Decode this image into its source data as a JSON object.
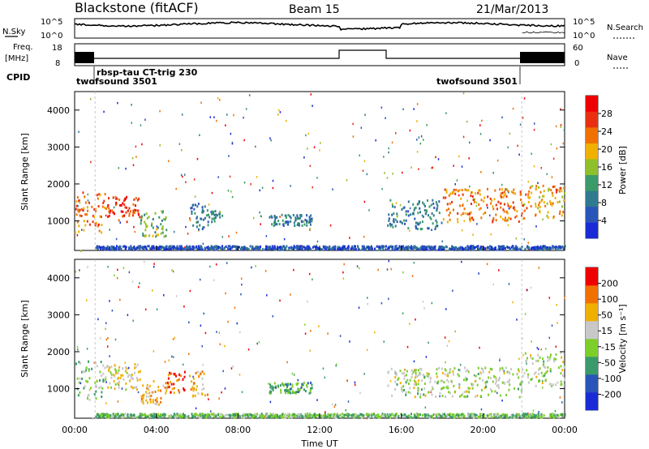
{
  "header": {
    "title": "Blackstone (fitACF)",
    "beam": "Beam 15",
    "date": "21/Mar/2013"
  },
  "top_panels": {
    "nsky_label": "N.Sky",
    "nsearch_label": "N.Search",
    "nsky_ticks": [
      "10^5",
      "10^0"
    ],
    "freq_label_1": "Freq.",
    "freq_label_2": "[MHz]",
    "freq_ticks": [
      "18",
      "8"
    ],
    "nave_ticks": [
      "60",
      "0"
    ],
    "nave_label": "Nave",
    "cpid_label": "CPID",
    "cpid_entries": [
      {
        "text": "twofsound 3501"
      },
      {
        "text": "rbsp-tau CT-trig 230"
      },
      {
        "text": "twofsound 3501"
      }
    ]
  },
  "chart_data": [
    {
      "type": "heatmap",
      "panel": "power",
      "ylabel": "Slant Range [km]",
      "yticks": [
        1000,
        2000,
        3000,
        4000
      ],
      "ylim": [
        200,
        4500
      ],
      "xlim": [
        0,
        24
      ],
      "colorbar_label": "Power [dB]",
      "colorbar_ticks": [
        4,
        8,
        12,
        16,
        20,
        24,
        28
      ],
      "colorbar_range": [
        0,
        32
      ],
      "colors": [
        "#1a2bd6",
        "#2a55b8",
        "#2f7a8f",
        "#3a9a6a",
        "#8fbf2a",
        "#f0b000",
        "#f07000",
        "#e83010",
        "#ee0000"
      ],
      "bands": [
        {
          "t0": 0.0,
          "t1": 1.5,
          "r0": 700,
          "r1": 1800,
          "level": 0.75
        },
        {
          "t0": 1.5,
          "t1": 3.2,
          "r0": 1000,
          "r1": 1700,
          "level": 0.85
        },
        {
          "t0": 3.2,
          "t1": 4.5,
          "r0": 600,
          "r1": 1300,
          "level": 0.45
        },
        {
          "t0": 5.6,
          "t1": 6.5,
          "r0": 800,
          "r1": 1500,
          "level": 0.25
        },
        {
          "t0": 6.5,
          "t1": 7.2,
          "r0": 1000,
          "r1": 1300,
          "level": 0.3
        },
        {
          "t0": 9.5,
          "t1": 11.6,
          "r0": 900,
          "r1": 1200,
          "level": 0.3
        },
        {
          "t0": 15.3,
          "t1": 18.0,
          "r0": 800,
          "r1": 1600,
          "level": 0.3
        },
        {
          "t0": 18.0,
          "t1": 22.0,
          "r0": 1000,
          "r1": 1900,
          "level": 0.7
        },
        {
          "t0": 22.0,
          "t1": 24.0,
          "r0": 1100,
          "r1": 2000,
          "level": 0.65
        },
        {
          "t0": 1.0,
          "t1": 24.0,
          "r0": 250,
          "r1": 350,
          "level": 0.15
        }
      ]
    },
    {
      "type": "heatmap",
      "panel": "velocity",
      "ylabel": "Slant Range [km]",
      "yticks": [
        1000,
        2000,
        3000,
        4000
      ],
      "ylim": [
        200,
        4500
      ],
      "xlim": [
        0,
        24
      ],
      "xlabel": "Time UT",
      "xticks": [
        "00:00",
        "04:00",
        "08:00",
        "12:00",
        "16:00",
        "20:00",
        "00:00"
      ],
      "colorbar_label": "Velocity [m s⁻¹]",
      "colorbar_ticks": [
        "200",
        "100",
        "50",
        "15",
        "-15",
        "-50",
        "-100",
        "-200"
      ],
      "colors": [
        "#1a2bd6",
        "#2a55b8",
        "#3a9a6a",
        "#7ccf2a",
        "#c8c8c8",
        "#f0b000",
        "#f07000",
        "#ee0000"
      ],
      "bands": [
        {
          "t0": 0.0,
          "t1": 1.5,
          "r0": 700,
          "r1": 1800,
          "level": 0.45
        },
        {
          "t0": 1.5,
          "t1": 3.2,
          "r0": 1000,
          "r1": 1700,
          "level": 0.6
        },
        {
          "t0": 3.2,
          "t1": 4.5,
          "r0": 600,
          "r1": 1300,
          "level": 0.7
        },
        {
          "t0": 4.5,
          "t1": 5.4,
          "r0": 900,
          "r1": 1500,
          "level": 0.85
        },
        {
          "t0": 5.6,
          "t1": 6.5,
          "r0": 800,
          "r1": 1500,
          "level": 0.72
        },
        {
          "t0": 9.5,
          "t1": 11.6,
          "r0": 900,
          "r1": 1200,
          "level": 0.35
        },
        {
          "t0": 15.3,
          "t1": 22.0,
          "r0": 800,
          "r1": 1600,
          "level": 0.5
        },
        {
          "t0": 22.0,
          "t1": 24.0,
          "r0": 1100,
          "r1": 2000,
          "level": 0.5
        },
        {
          "t0": 1.0,
          "t1": 24.0,
          "r0": 250,
          "r1": 350,
          "level": 0.4
        }
      ]
    }
  ]
}
